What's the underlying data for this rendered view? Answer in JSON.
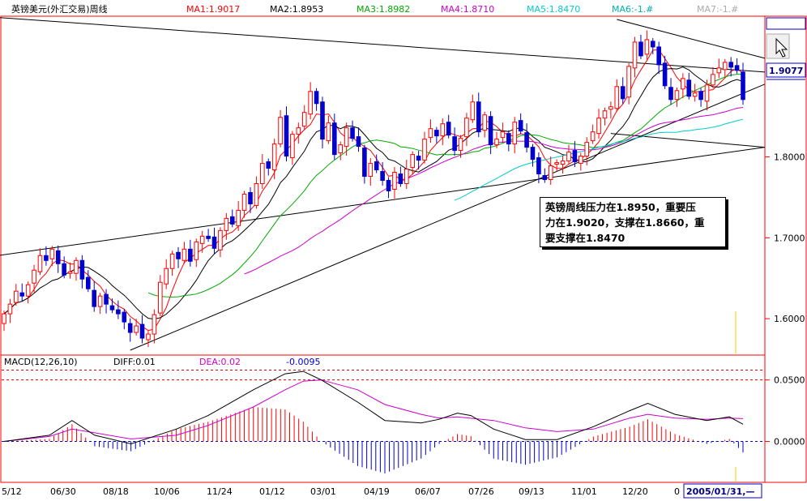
{
  "window": {
    "title": "英镑美元(外汇交易)周线",
    "price_tag": "1.9077",
    "date_tag": "2005/01/31,—"
  },
  "ma_legend": [
    {
      "label": "MA1:1.9017",
      "color": "#ff0000"
    },
    {
      "label": "MA2:1.8953",
      "color": "#000000"
    },
    {
      "label": "MA3:1.8982",
      "color": "#00aa00"
    },
    {
      "label": "MA4:1.8710",
      "color": "#cc00cc"
    },
    {
      "label": "MA5:1.8470",
      "color": "#00cccc"
    },
    {
      "label": "MA6:-1.#",
      "color": "#00b0b0"
    },
    {
      "label": "MA7:-1.#",
      "color": "#aaaaaa"
    }
  ],
  "macd_legend": {
    "name": "MACD(12,26,10)",
    "diff": "DIFF:0.01",
    "dea": "DEA:0.02",
    "macd": "-0.0095",
    "name_color": "#000000",
    "diff_color": "#000000",
    "dea_color": "#cc00cc",
    "macd_color": "#0000cc"
  },
  "annotation": {
    "line1": "英镑周线压力在1.8950，重要压",
    "line2": "力在1.9020，支撑在1.8660，重",
    "line3": "要支撑在1.8470"
  },
  "colors": {
    "up": "#ff0000",
    "down": "#0000cc",
    "frame": "#ff0000",
    "background": "#ffffff"
  },
  "chart_data": [
    {
      "type": "candlestick",
      "title": "英镑美元(外汇交易)周线",
      "y_ticks": [
        "1.8000",
        "1.7000",
        "1.6000"
      ],
      "y_tick_values": [
        1.8,
        1.7,
        1.6
      ],
      "ylim": [
        1.557,
        1.972
      ],
      "x_ticks": [
        "5/12",
        "06/30",
        "08/18",
        "10/06",
        "11/24",
        "01/12",
        "03/01",
        "04/19",
        "06/07",
        "07/26",
        "09/13",
        "11/01",
        "12/20",
        "0"
      ],
      "close": [
        1.606,
        1.618,
        1.634,
        1.628,
        1.642,
        1.66,
        1.678,
        1.672,
        1.686,
        1.668,
        1.654,
        1.658,
        1.672,
        1.649,
        1.637,
        1.615,
        1.628,
        1.618,
        1.611,
        1.606,
        1.596,
        1.583,
        1.591,
        1.576,
        1.581,
        1.605,
        1.645,
        1.662,
        1.68,
        1.674,
        1.686,
        1.671,
        1.695,
        1.702,
        1.699,
        1.687,
        1.709,
        1.724,
        1.717,
        1.734,
        1.754,
        1.742,
        1.767,
        1.792,
        1.786,
        1.816,
        1.849,
        1.801,
        1.828,
        1.836,
        1.855,
        1.881,
        1.866,
        1.822,
        1.842,
        1.803,
        1.815,
        1.836,
        1.823,
        1.813,
        1.776,
        1.792,
        1.784,
        1.771,
        1.758,
        1.781,
        1.767,
        1.785,
        1.803,
        1.796,
        1.822,
        1.835,
        1.826,
        1.841,
        1.827,
        1.808,
        1.823,
        1.848,
        1.868,
        1.831,
        1.852,
        1.815,
        1.822,
        1.831,
        1.816,
        1.843,
        1.832,
        1.812,
        1.797,
        1.779,
        1.772,
        1.789,
        1.793,
        1.795,
        1.806,
        1.794,
        1.801,
        1.818,
        1.831,
        1.848,
        1.857,
        1.862,
        1.887,
        1.872,
        1.912,
        1.942,
        1.925,
        1.945,
        1.936,
        1.914,
        1.888,
        1.871,
        1.882,
        1.897,
        1.875,
        1.879,
        1.871,
        1.889,
        1.902,
        1.91,
        1.917,
        1.911,
        1.907,
        1.871
      ],
      "ma_series": [
        {
          "name": "MA1",
          "color": "#ff0000",
          "period": 5
        },
        {
          "name": "MA2",
          "color": "#000000",
          "period": 10
        },
        {
          "name": "MA3",
          "color": "#00aa00",
          "period": 20,
          "start": 24
        },
        {
          "name": "MA4",
          "color": "#cc00cc",
          "period": 40,
          "start": 40
        },
        {
          "name": "MA5",
          "color": "#00cccc",
          "period": 60,
          "start": 75
        }
      ]
    },
    {
      "type": "bar+line",
      "title": "MACD(12,26,10)",
      "y_ticks": [
        "0.0500",
        "0.0000"
      ],
      "y_tick_values": [
        0.05,
        0.0
      ],
      "ylim": [
        -0.032,
        0.061
      ],
      "reference_lines": [
        0.058,
        0.05
      ],
      "diff_points": [
        [
          0,
          0
        ],
        [
          10,
          0.005
        ],
        [
          15,
          0.017
        ],
        [
          20,
          0.005
        ],
        [
          28,
          -0.002
        ],
        [
          38,
          0.01
        ],
        [
          45,
          0.021
        ],
        [
          55,
          0.042
        ],
        [
          62,
          0.055
        ],
        [
          66,
          0.057
        ],
        [
          70,
          0.05
        ],
        [
          78,
          0.032
        ],
        [
          84,
          0.017
        ],
        [
          92,
          0.015
        ],
        [
          96,
          0.018
        ],
        [
          100,
          0.023
        ],
        [
          103,
          0.021
        ],
        [
          108,
          0.01
        ],
        [
          115,
          0.0015
        ],
        [
          122,
          0.0015
        ],
        [
          130,
          0.012
        ],
        [
          138,
          0.025
        ],
        [
          142,
          0.031
        ],
        [
          148,
          0.022
        ],
        [
          155,
          0.017
        ],
        [
          160,
          0.02
        ],
        [
          163,
          0.014
        ]
      ],
      "dea_points": [
        [
          0,
          0
        ],
        [
          10,
          0.004
        ],
        [
          15,
          0.01
        ],
        [
          20,
          0.007
        ],
        [
          28,
          0.002
        ],
        [
          38,
          0.005
        ],
        [
          45,
          0.013
        ],
        [
          55,
          0.028
        ],
        [
          62,
          0.042
        ],
        [
          66,
          0.049
        ],
        [
          70,
          0.05
        ],
        [
          78,
          0.042
        ],
        [
          84,
          0.03
        ],
        [
          92,
          0.022
        ],
        [
          96,
          0.019
        ],
        [
          100,
          0.02
        ],
        [
          108,
          0.017
        ],
        [
          115,
          0.011
        ],
        [
          122,
          0.008
        ],
        [
          130,
          0.01
        ],
        [
          138,
          0.019
        ],
        [
          142,
          0.022
        ],
        [
          148,
          0.019
        ],
        [
          155,
          0.018
        ],
        [
          160,
          0.019
        ],
        [
          163,
          0.0185
        ]
      ],
      "hist_x_range": [
        0,
        163
      ]
    }
  ]
}
